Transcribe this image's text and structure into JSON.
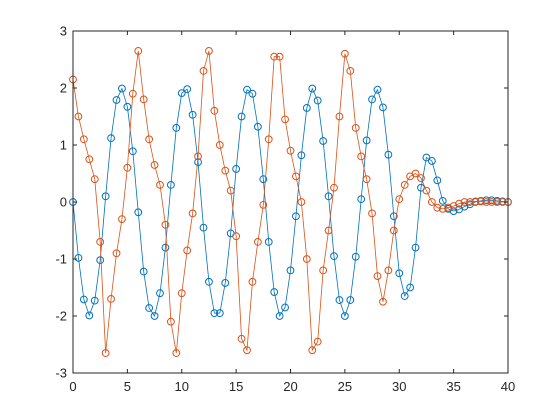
{
  "chart_data": {
    "type": "scatter",
    "title": "",
    "xlabel": "",
    "ylabel": "",
    "xlim": [
      0,
      40
    ],
    "ylim": [
      -3,
      3
    ],
    "xticks": [
      "0",
      "5",
      "10",
      "15",
      "20",
      "25",
      "30",
      "35",
      "40"
    ],
    "yticks": [
      "-3",
      "-2",
      "-1",
      "0",
      "1",
      "2",
      "3"
    ],
    "grid": false,
    "legend": "none",
    "marker": "open-circle",
    "connected_by_line": true,
    "series": [
      {
        "color": "#0072BD",
        "x": [
          0,
          0.5,
          1.0,
          1.5,
          2.0,
          2.5,
          3.0,
          3.5,
          4.0,
          4.5,
          5.0,
          5.5,
          6.0,
          6.5,
          7.0,
          7.5,
          8.0,
          8.5,
          9.0,
          9.5,
          10.0,
          10.5,
          11.0,
          11.5,
          12.0,
          12.5,
          13.0,
          13.5,
          14.0,
          14.5,
          15.0,
          15.5,
          16.0,
          16.5,
          17.0,
          17.5,
          18.0,
          18.5,
          19.0,
          19.5,
          20.0,
          20.5,
          21.0,
          21.5,
          22.0,
          22.5,
          23.0,
          23.5,
          24.0,
          24.5,
          25.0,
          25.5,
          26.0,
          26.5,
          27.0,
          27.5,
          28.0,
          28.5,
          29.0,
          29.5,
          30.0,
          30.5,
          31.0,
          31.5,
          32.0,
          32.5,
          33.0,
          33.5,
          34.0,
          34.5,
          35.0,
          35.5,
          36.0,
          36.5,
          37.0,
          37.5,
          38.0,
          38.5,
          39.0,
          39.5,
          40.0
        ],
        "y": [
          0,
          -0.98,
          -1.71,
          -1.99,
          -1.73,
          -1.02,
          0.1,
          1.12,
          1.79,
          1.99,
          1.67,
          0.89,
          -0.18,
          -1.22,
          -1.86,
          -2.0,
          -1.6,
          -0.8,
          0.3,
          1.3,
          1.91,
          1.98,
          1.53,
          0.7,
          -0.45,
          -1.4,
          -1.95,
          -1.95,
          -1.42,
          -0.55,
          0.58,
          1.5,
          1.97,
          1.9,
          1.32,
          0.4,
          -0.7,
          -1.58,
          -2.0,
          -1.85,
          -1.2,
          -0.25,
          0.82,
          1.65,
          1.99,
          1.78,
          1.07,
          0.1,
          -0.95,
          -1.72,
          -2.0,
          -1.72,
          -0.96,
          0.05,
          1.08,
          1.8,
          1.97,
          1.66,
          0.83,
          -0.25,
          -1.25,
          -1.65,
          -1.5,
          -0.8,
          0.25,
          0.78,
          0.72,
          0.38,
          0.02,
          -0.12,
          -0.16,
          -0.13,
          -0.08,
          -0.04,
          0.0,
          0.02,
          0.03,
          0.03,
          0.02,
          0.01,
          0.0
        ]
      },
      {
        "color": "#D95319",
        "x": [
          0,
          0.5,
          1.0,
          1.5,
          2.0,
          2.5,
          3.0,
          3.5,
          4.0,
          4.5,
          5.0,
          5.5,
          6.0,
          6.5,
          7.0,
          7.5,
          8.0,
          8.5,
          9.0,
          9.5,
          10.0,
          10.5,
          11.0,
          11.5,
          12.0,
          12.5,
          13.0,
          13.5,
          14.0,
          14.5,
          15.0,
          15.5,
          16.0,
          16.5,
          17.0,
          17.5,
          18.0,
          18.5,
          19.0,
          19.5,
          20.0,
          20.5,
          21.0,
          21.5,
          22.0,
          22.5,
          23.0,
          23.5,
          24.0,
          24.5,
          25.0,
          25.5,
          26.0,
          26.5,
          27.0,
          27.5,
          28.0,
          28.5,
          29.0,
          29.5,
          30.0,
          30.5,
          31.0,
          31.5,
          32.0,
          32.5,
          33.0,
          33.5,
          34.0,
          34.5,
          35.0,
          35.5,
          36.0,
          36.5,
          37.0,
          37.5,
          38.0,
          38.5,
          39.0,
          39.5,
          40.0
        ],
        "y": [
          2.15,
          1.5,
          1.1,
          0.75,
          0.4,
          -0.7,
          -2.65,
          -1.7,
          -0.9,
          -0.3,
          0.6,
          1.9,
          2.65,
          1.8,
          1.1,
          0.65,
          0.3,
          -0.4,
          -2.1,
          -2.65,
          -1.6,
          -0.85,
          -0.2,
          0.8,
          2.3,
          2.65,
          1.6,
          1.0,
          0.55,
          0.2,
          -0.6,
          -2.4,
          -2.6,
          -1.4,
          -0.7,
          -0.05,
          1.1,
          2.55,
          2.55,
          1.45,
          0.9,
          0.45,
          0.0,
          -1.0,
          -2.6,
          -2.45,
          -1.2,
          -0.5,
          0.25,
          1.5,
          2.6,
          2.3,
          1.3,
          0.8,
          0.4,
          -0.2,
          -1.3,
          -1.75,
          -1.2,
          -0.5,
          0.05,
          0.3,
          0.45,
          0.5,
          0.42,
          0.2,
          0.0,
          -0.1,
          -0.12,
          -0.1,
          -0.07,
          -0.03,
          0.0,
          0.0,
          0.01,
          0.01,
          0.0,
          0.0,
          0.0,
          0.0,
          0.0
        ]
      }
    ]
  }
}
